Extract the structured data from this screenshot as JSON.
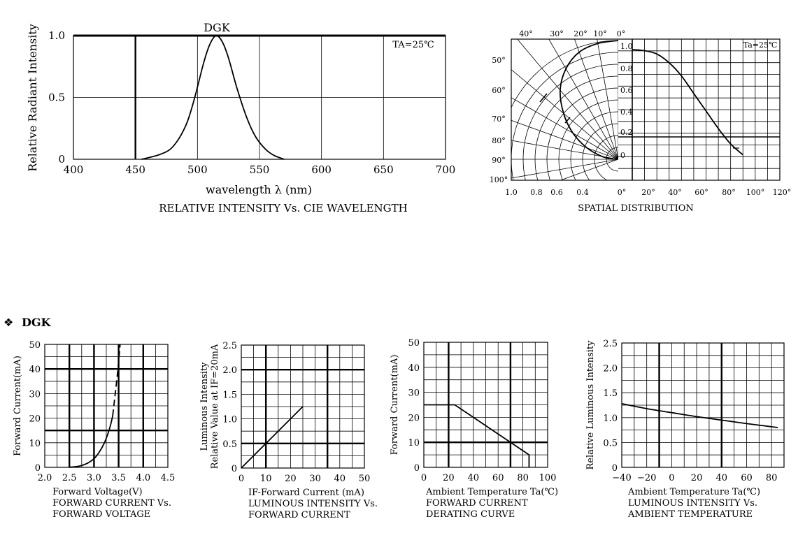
{
  "section_heading": {
    "bullet": "❖",
    "label": "DGK"
  },
  "chart_data": [
    {
      "id": "spectrum",
      "type": "line",
      "title": "RELATIVE INTENSITY Vs. CIE WAVELENGTH",
      "series_label": "DGK",
      "annotation": "TA=25℃",
      "xlabel": "wavelength λ (nm)",
      "ylabel": "Relative Radiant Intensity",
      "xlim": [
        400,
        700
      ],
      "ylim": [
        0,
        1.0
      ],
      "xticks": [
        "400",
        "450",
        "500",
        "550",
        "600",
        "650",
        "700"
      ],
      "yticks": [
        "0",
        "0.5",
        "1.0"
      ],
      "series": [
        {
          "x": [
            455,
            470,
            480,
            490,
            497,
            505,
            510,
            515,
            520,
            525,
            532,
            540,
            547,
            555,
            562,
            570
          ],
          "y": [
            0.0,
            0.04,
            0.1,
            0.26,
            0.47,
            0.78,
            0.93,
            1.0,
            0.95,
            0.82,
            0.57,
            0.33,
            0.18,
            0.08,
            0.03,
            0.0
          ]
        }
      ]
    },
    {
      "id": "spatial",
      "type": "line",
      "title": "SPATIAL DISTRIBUTION",
      "annotation": "Ta=25℃",
      "polar_angle_labels": [
        "40°",
        "30°",
        "20°",
        "10°",
        "0°",
        "50°",
        "60°",
        "70°",
        "80°",
        "90°",
        "100°"
      ],
      "polar_radius_labels": [
        "1.0",
        "0.8",
        "0.6",
        "0.4",
        "0°"
      ],
      "cart_x_ticks": [
        "20°",
        "40°",
        "60°",
        "80°",
        "100°",
        "120°"
      ],
      "cart_y_ticks": [
        "1.0",
        "0.8",
        "0.6",
        "0.4",
        "0.2",
        "0"
      ],
      "series": [
        {
          "x": [
            0,
            10,
            20,
            30,
            40,
            50,
            60,
            70,
            80,
            90
          ],
          "y": [
            1.0,
            0.99,
            0.96,
            0.88,
            0.76,
            0.6,
            0.44,
            0.28,
            0.14,
            0.04
          ]
        }
      ]
    },
    {
      "id": "iv",
      "type": "line",
      "title": "FORWARD CURRENT Vs.\nFORWARD VOLTAGE",
      "xlabel": "Forward Voltage(V)",
      "ylabel": "Forward Current(mA)",
      "xlim": [
        2.0,
        4.5
      ],
      "ylim": [
        0,
        50
      ],
      "xticks": [
        "2.0",
        "2.5",
        "3.0",
        "3.5",
        "4.0",
        "4.5"
      ],
      "yticks": [
        "0",
        "10",
        "20",
        "30",
        "40",
        "50"
      ],
      "series": [
        {
          "name": "",
          "x": [
            2.5,
            2.7,
            2.85,
            3.0,
            3.1,
            3.2,
            3.28,
            3.34,
            3.38
          ],
          "y": [
            0,
            0.5,
            1.5,
            3.5,
            6,
            9.5,
            13.5,
            17.5,
            21
          ]
        },
        {
          "name": "",
          "x": [
            3.38,
            3.42,
            3.46,
            3.5,
            3.53
          ],
          "y": [
            21,
            28,
            35,
            43,
            50
          ],
          "dashed": true
        }
      ]
    },
    {
      "id": "lum-current",
      "type": "line",
      "title": "LUMINOUS INTENSITY Vs.\nFORWARD CURRENT",
      "xlabel": "IF-Forward Current (mA)",
      "ylabel": "Luminous Intensity\nRelative Value at IF=20mA",
      "xlim": [
        0,
        50
      ],
      "ylim": [
        0,
        2.5
      ],
      "xticks": [
        "0",
        "10",
        "20",
        "30",
        "40",
        "50"
      ],
      "yticks": [
        "0",
        "0.5",
        "1.0",
        "1.5",
        "2.0",
        "2.5"
      ],
      "series": [
        {
          "x": [
            0,
            25
          ],
          "y": [
            0,
            1.25
          ]
        }
      ]
    },
    {
      "id": "derating",
      "type": "line",
      "title": "FORWARD CURRENT\nDERATING CURVE",
      "xlabel": "Ambient Temperature Ta(℃)",
      "ylabel": "Forward Current(mA)",
      "xlim": [
        0,
        100
      ],
      "ylim": [
        0,
        50
      ],
      "xticks": [
        "0",
        "20",
        "40",
        "60",
        "80",
        "100"
      ],
      "yticks": [
        "0",
        "10",
        "20",
        "30",
        "40",
        "50"
      ],
      "series": [
        {
          "x": [
            0,
            25,
            85,
            85
          ],
          "y": [
            25,
            25,
            5,
            0
          ]
        }
      ]
    },
    {
      "id": "lum-temp",
      "type": "line",
      "title": "LUMINOUS INTENSITY Vs.\nAMBIENT TEMPERATURE",
      "xlabel": "Ambient Temperature Ta(℃)",
      "ylabel": "Relative Luminous Intensity",
      "xlim": [
        -40,
        90
      ],
      "ylim": [
        0,
        2.5
      ],
      "xticks": [
        "−40",
        "−20",
        "0",
        "20",
        "40",
        "60",
        "80"
      ],
      "yticks": [
        "0",
        "0.5",
        "1.0",
        "1.5",
        "2.0",
        "2.5"
      ],
      "series": [
        {
          "x": [
            -40,
            -20,
            0,
            20,
            40,
            60,
            85
          ],
          "y": [
            1.28,
            1.18,
            1.1,
            1.02,
            0.95,
            0.88,
            0.8
          ]
        }
      ]
    }
  ]
}
